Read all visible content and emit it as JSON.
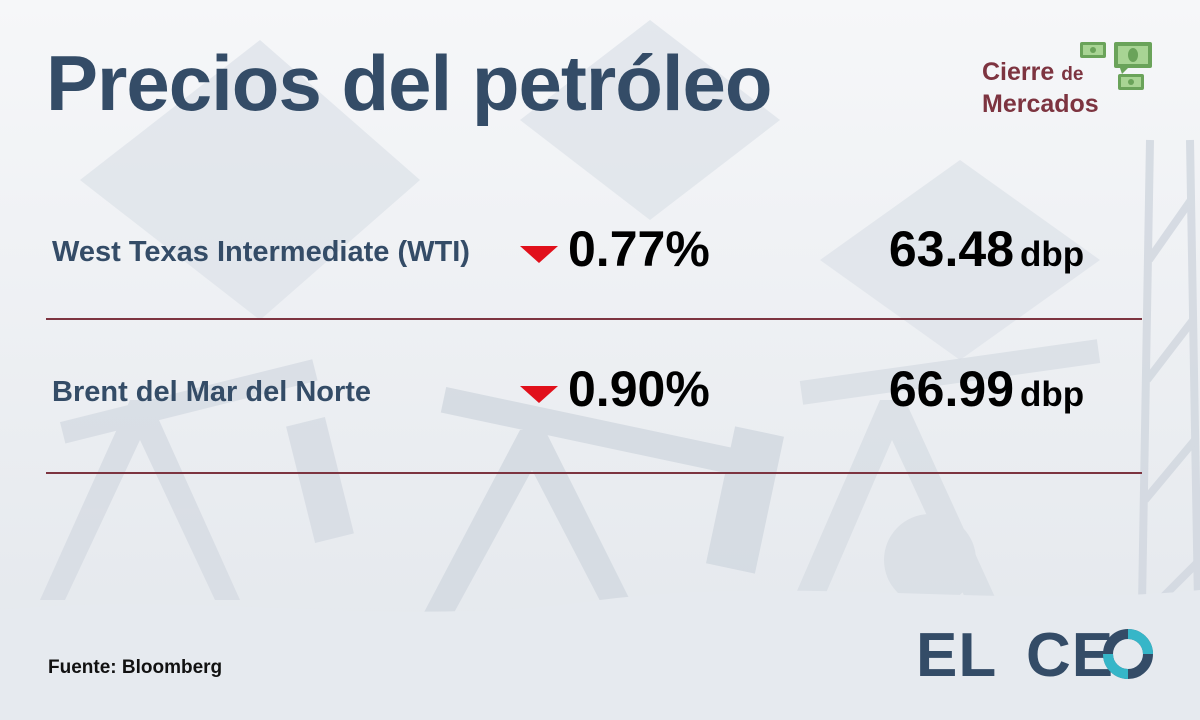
{
  "title": "Precios del petróleo",
  "badge": {
    "line1": "Cierre",
    "line1_small": "de",
    "line2": "Mercados",
    "icon": "money-bills-icon",
    "color": "#7d3440",
    "icon_color": "#6aa35a"
  },
  "rows": [
    {
      "name": "West Texas Intermediate (WTI)",
      "direction": "down",
      "change": "0.77%",
      "price": "63.48",
      "unit": "dbp"
    },
    {
      "name": "Brent del Mar del Norte",
      "direction": "down",
      "change": "0.90%",
      "price": "66.99",
      "unit": "dbp"
    }
  ],
  "source": "Fuente: Bloomberg",
  "logo": {
    "part1": "EL",
    "part2": "CE",
    "icon": "logo-o-ring-icon"
  },
  "colors": {
    "title": "#344c67",
    "divider": "#7d3440",
    "down_arrow": "#e1101b",
    "logo_ring": "#36b6c8"
  }
}
